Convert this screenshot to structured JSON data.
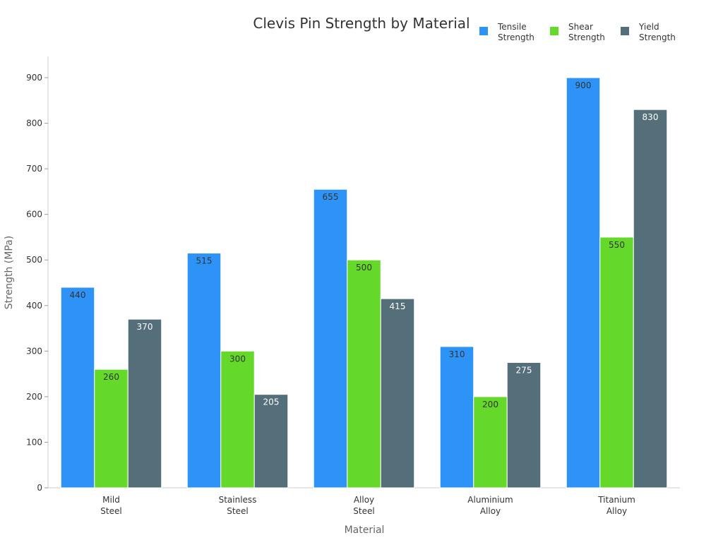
{
  "chart_data": {
    "type": "bar",
    "title": "Clevis Pin Strength by Material",
    "xlabel": "Material",
    "ylabel": "Strength (MPa)",
    "categories": [
      [
        "Mild",
        "Steel"
      ],
      [
        "Stainless",
        "Steel"
      ],
      [
        "Alloy",
        "Steel"
      ],
      [
        "Aluminium",
        "Alloy"
      ],
      [
        "Titanium",
        "Alloy"
      ]
    ],
    "series": [
      {
        "name": [
          "Tensile",
          "Strength"
        ],
        "color": "#2e93f7",
        "label_color": "#333333",
        "values": [
          440,
          515,
          655,
          310,
          900
        ]
      },
      {
        "name": [
          "Shear",
          "Strength"
        ],
        "color": "#64d929",
        "label_color": "#333333",
        "values": [
          260,
          300,
          500,
          200,
          550
        ]
      },
      {
        "name": [
          "Yield",
          "Strength"
        ],
        "color": "#546e7a",
        "label_color": "#ffffff",
        "values": [
          370,
          205,
          415,
          275,
          830
        ]
      }
    ],
    "ylim": [
      0,
      950
    ],
    "yticks": [
      0,
      100,
      200,
      300,
      400,
      500,
      600,
      700,
      800,
      900
    ],
    "grid": false,
    "legend": "top-right"
  }
}
